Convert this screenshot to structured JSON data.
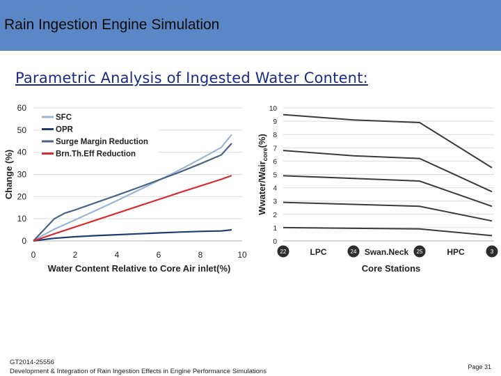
{
  "header": {
    "title": "Rain Ingestion Engine Simulation"
  },
  "subtitle": "Parametric Analysis of Ingested Water Content:",
  "footer": {
    "line1": "GT2014-25556",
    "line2": "Development & Integration of Rain Ingestion Effects in Engine Performance Simulations",
    "page": "Page 31"
  },
  "colors": {
    "header_bg": "#5b87c6",
    "subtitle": "#1a2a8a",
    "sfc": "#9cb4d0",
    "opr": "#1f3c6e",
    "surge": "#4a6386",
    "brn": "#d92b2b",
    "station_lines": "#3a3a3a"
  },
  "chart_data": [
    {
      "type": "line",
      "xlabel": "Water Content Relative to Core Air inlet(%)",
      "ylabel": "Change (%)",
      "xlim": [
        0,
        10
      ],
      "ylim": [
        0,
        60
      ],
      "xticks": [
        "0",
        "2",
        "4",
        "6",
        "8",
        "10"
      ],
      "yticks": [
        "0",
        "10",
        "20",
        "30",
        "40",
        "50",
        "60"
      ],
      "grid": true,
      "legend": "top-left",
      "series": [
        {
          "name": "SFC",
          "color": "#9cb4d0",
          "x": [
            0,
            0.5,
            1,
            2,
            3,
            4,
            5,
            6,
            7,
            8,
            9,
            9.5
          ],
          "y": [
            0,
            2.8,
            5.3,
            9.5,
            13.8,
            18.2,
            22.7,
            27.3,
            32,
            37,
            42.2,
            48
          ]
        },
        {
          "name": "OPR",
          "color": "#1f3c6e",
          "x": [
            0,
            1,
            2,
            3,
            4,
            5,
            6,
            7,
            8,
            9,
            9.5
          ],
          "y": [
            0,
            1.2,
            1.9,
            2.4,
            2.8,
            3.2,
            3.6,
            4,
            4.3,
            4.5,
            5
          ]
        },
        {
          "name": "Surge Margin Reduction",
          "color": "#4a6386",
          "x": [
            0,
            0.5,
            1,
            1.5,
            2,
            3,
            4,
            5,
            6,
            7,
            8,
            9,
            9.5
          ],
          "y": [
            0,
            5,
            10,
            12.5,
            14,
            17.3,
            20.6,
            24,
            27.5,
            31,
            34.8,
            38.8,
            44
          ]
        },
        {
          "name": "Brn.Th.Eff Reduction",
          "color": "#d92b2b",
          "x": [
            0,
            1,
            2,
            3,
            4,
            5,
            6,
            7,
            8,
            9,
            9.5
          ],
          "y": [
            0,
            3.2,
            6.3,
            9.4,
            12.5,
            15.6,
            18.7,
            21.8,
            24.8,
            27.8,
            29.5
          ]
        }
      ]
    },
    {
      "type": "line",
      "xlabel": "Core Stations",
      "ylabel": "Wwater/Waircore(%)",
      "ylabel_main": "Wwater/Wair",
      "ylabel_sub": "core",
      "ylabel_suffix": "(%)",
      "categories": [
        "22",
        "LPC",
        "24",
        "Swan.Neck",
        "25",
        "HPC",
        "3"
      ],
      "station_markers": [
        "22",
        "24",
        "25",
        "3"
      ],
      "section_labels": [
        "LPC",
        "Swan.Neck",
        "HPC"
      ],
      "ylim": [
        0,
        10
      ],
      "yticks": [
        "0",
        "1",
        "2",
        "3",
        "4",
        "5",
        "6",
        "7",
        "8",
        "9",
        "10"
      ],
      "grid": true,
      "series": [
        {
          "x": [
            22,
            24,
            25,
            3
          ],
          "values": [
            9.5,
            9.1,
            8.9,
            5.5
          ]
        },
        {
          "x": [
            22,
            24,
            25,
            3
          ],
          "values": [
            6.8,
            6.4,
            6.2,
            3.7
          ]
        },
        {
          "x": [
            22,
            24,
            25,
            3
          ],
          "values": [
            4.9,
            4.7,
            4.5,
            2.6
          ]
        },
        {
          "x": [
            22,
            24,
            25,
            3
          ],
          "values": [
            2.9,
            2.75,
            2.6,
            1.5
          ]
        },
        {
          "x": [
            22,
            24,
            25,
            3
          ],
          "values": [
            1.0,
            0.95,
            0.9,
            0.4
          ]
        }
      ]
    }
  ]
}
